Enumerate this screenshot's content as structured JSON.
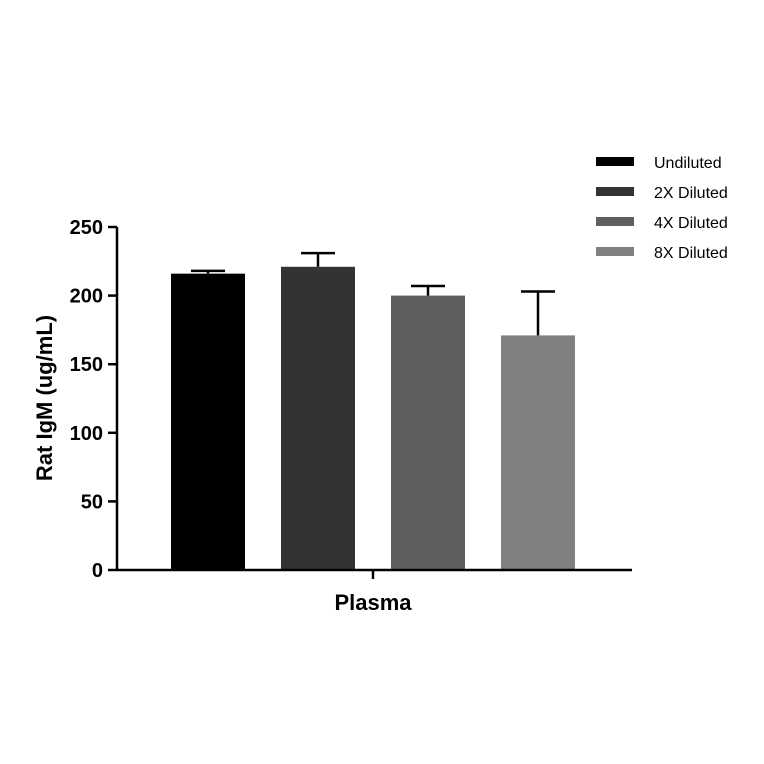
{
  "chart_data": {
    "type": "bar",
    "title": "",
    "categories": [
      "Plasma"
    ],
    "xlabel": "Plasma",
    "ylabel": "Rat IgM (ug/mL)",
    "ylim": [
      0,
      250
    ],
    "yticks": [
      0,
      50,
      100,
      150,
      200,
      250
    ],
    "grid": false,
    "legend_position": "top-right",
    "series": [
      {
        "name": "Undiluted",
        "values": [
          216
        ],
        "error": [
          2
        ],
        "color": "#000000"
      },
      {
        "name": "2X Diluted",
        "values": [
          221
        ],
        "error": [
          10
        ],
        "color": "#333333"
      },
      {
        "name": "4X Diluted",
        "values": [
          200
        ],
        "error": [
          7
        ],
        "color": "#5f5f5f"
      },
      {
        "name": "8X Diluted",
        "values": [
          171
        ],
        "error": [
          32
        ],
        "color": "#808080"
      }
    ]
  }
}
